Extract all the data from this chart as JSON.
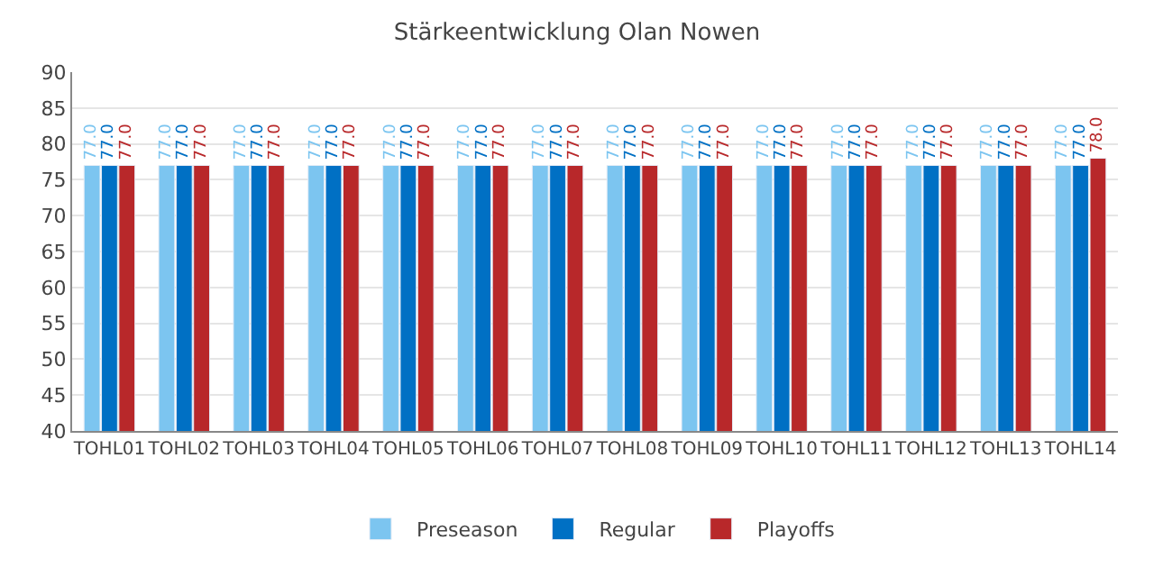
{
  "chart_data": {
    "type": "bar",
    "title": "Stärkeentwicklung Olan Nowen",
    "categories": [
      "TOHL01",
      "TOHL02",
      "TOHL03",
      "TOHL04",
      "TOHL05",
      "TOHL06",
      "TOHL07",
      "TOHL08",
      "TOHL09",
      "TOHL10",
      "TOHL11",
      "TOHL12",
      "TOHL13",
      "TOHL14"
    ],
    "series": [
      {
        "name": "Preseason",
        "color": "#7cc5f0",
        "values": [
          77,
          77,
          77,
          77,
          77,
          77,
          77,
          77,
          77,
          77,
          77,
          77,
          77,
          77
        ],
        "value_labels": [
          "77.0",
          "77.0",
          "77.0",
          "77.0",
          "77.0",
          "77.0",
          "77.0",
          "77.0",
          "77.0",
          "77.0",
          "77.0",
          "77.0",
          "77.0",
          "77.0"
        ]
      },
      {
        "name": "Regular",
        "color": "#0070c4",
        "values": [
          77,
          77,
          77,
          77,
          77,
          77,
          77,
          77,
          77,
          77,
          77,
          77,
          77,
          77
        ],
        "value_labels": [
          "77.0",
          "77.0",
          "77.0",
          "77.0",
          "77.0",
          "77.0",
          "77.0",
          "77.0",
          "77.0",
          "77.0",
          "77.0",
          "77.0",
          "77.0",
          "77.0"
        ]
      },
      {
        "name": "Playoffs",
        "color": "#b8282a",
        "values": [
          77,
          77,
          77,
          77,
          77,
          77,
          77,
          77,
          77,
          77,
          77,
          77,
          77,
          78
        ],
        "value_labels": [
          "77.0",
          "77.0",
          "77.0",
          "77.0",
          "77.0",
          "77.0",
          "77.0",
          "77.0",
          "77.0",
          "77.0",
          "77.0",
          "77.0",
          "77.0",
          "78.0"
        ]
      }
    ],
    "ylim": [
      40,
      90
    ],
    "yticks": [
      40,
      45,
      50,
      55,
      60,
      65,
      70,
      75,
      80,
      85,
      90
    ],
    "grid": "y",
    "legend": "bottom"
  }
}
